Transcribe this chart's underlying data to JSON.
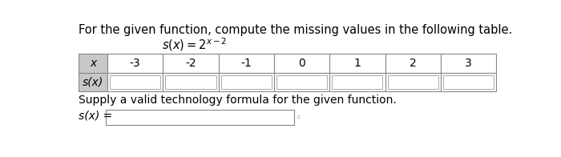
{
  "title": "For the given function, compute the missing values in the following table.",
  "function_display": "s(x) = 2^{x-2}",
  "x_values": [
    "-3",
    "-2",
    "-1",
    "0",
    "1",
    "2",
    "3"
  ],
  "row_header_x": "x",
  "row_header_sx": "s(x)",
  "supply_label": "Supply a valid technology formula for the given function.",
  "sx_label": "s(x) =",
  "bg_color": "#ffffff",
  "header_cell_color": "#c8c8c8",
  "data_cell_color": "#ffffff",
  "table_border_color": "#888888",
  "title_fontsize": 10.5,
  "function_fontsize": 10.5,
  "table_fontsize": 10,
  "body_fontsize": 10
}
